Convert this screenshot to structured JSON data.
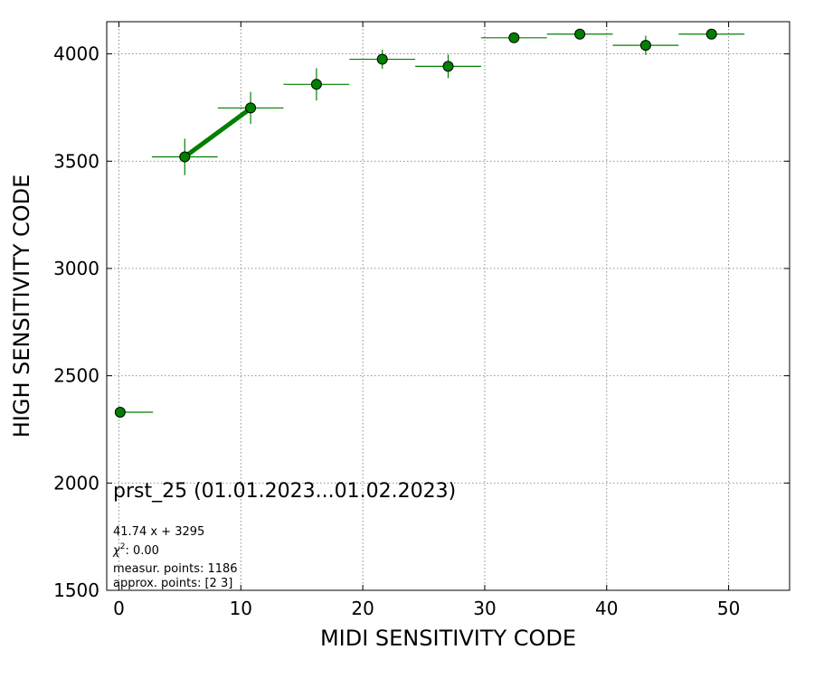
{
  "chart_data": {
    "type": "scatter",
    "xlabel": "MIDI SENSITIVITY CODE",
    "ylabel": "HIGH SENSITIVITY CODE",
    "xlim": [
      -1,
      55
    ],
    "ylim": [
      1500,
      4150
    ],
    "x_ticks": [
      0,
      10,
      20,
      30,
      40,
      50
    ],
    "y_ticks": [
      1500,
      2000,
      2500,
      3000,
      3500,
      4000
    ],
    "grid": true,
    "series": [
      {
        "marker_color": "#008000",
        "points": [
          {
            "x": 0.1,
            "y": 2330,
            "xerr_low": 0.1,
            "xerr_high": 2.7,
            "yerr": 0
          },
          {
            "x": 5.4,
            "y": 3520,
            "xerr": 2.7,
            "yerr": 85
          },
          {
            "x": 10.8,
            "y": 3748,
            "xerr": 2.7,
            "yerr": 75
          },
          {
            "x": 16.2,
            "y": 3858,
            "xerr": 2.7,
            "yerr": 75
          },
          {
            "x": 21.6,
            "y": 3975,
            "xerr": 2.7,
            "yerr": 45
          },
          {
            "x": 27.0,
            "y": 3942,
            "xerr": 2.7,
            "yerr": 55
          },
          {
            "x": 32.4,
            "y": 4075,
            "xerr": 2.7,
            "yerr": 0
          },
          {
            "x": 37.8,
            "y": 4092,
            "xerr": 2.7,
            "yerr": 0
          },
          {
            "x": 43.2,
            "y": 4040,
            "xerr": 2.7,
            "yerr": 45
          },
          {
            "x": 48.6,
            "y": 4092,
            "xerr": 2.7,
            "yerr": 0
          }
        ]
      }
    ],
    "fit_line": {
      "color": "#008000",
      "slope": 41.74,
      "intercept": 3295,
      "x_range": [
        5.4,
        10.8
      ]
    },
    "annotations": {
      "title": "prst_25 (01.01.2023...01.02.2023)",
      "fit_equation": "41.74 x + 3295",
      "chi2_label": "χ",
      "chi2_superscript": "2",
      "chi2_value": ": 0.00",
      "measur_points": "measur. points: 1186",
      "approx_points": "approx. points: [2 3]"
    }
  }
}
